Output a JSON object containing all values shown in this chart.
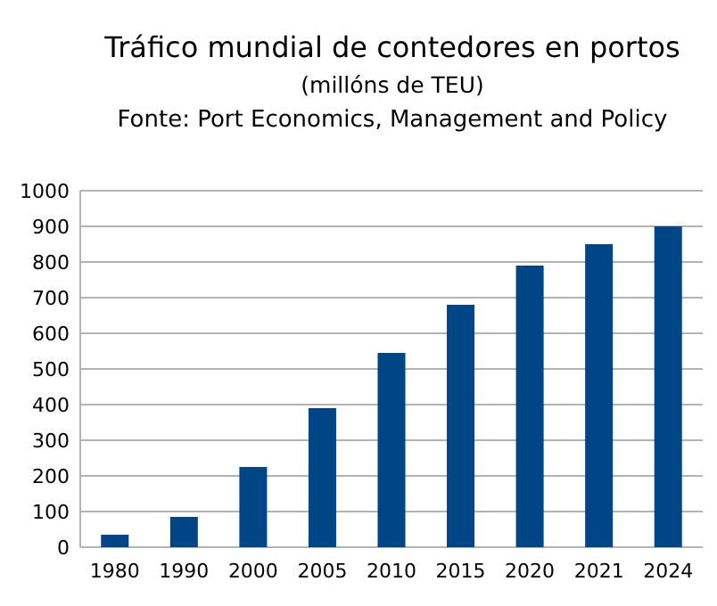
{
  "chart_data": {
    "type": "bar",
    "title": "Tráfico mundial de contedores en portos",
    "subtitle": "(millóns de TEU)",
    "annotations": [
      "Fonte: Port Economics, Management and Policy"
    ],
    "categories": [
      "1980",
      "1990",
      "2000",
      "2005",
      "2010",
      "2015",
      "2020",
      "2021",
      "2024"
    ],
    "values": [
      35,
      85,
      225,
      390,
      545,
      680,
      790,
      850,
      900
    ],
    "color": "#004586",
    "ylim": [
      0,
      1000
    ],
    "yticks": [
      0,
      100,
      200,
      300,
      400,
      500,
      600,
      700,
      800,
      900,
      1000
    ],
    "grid": "y"
  }
}
